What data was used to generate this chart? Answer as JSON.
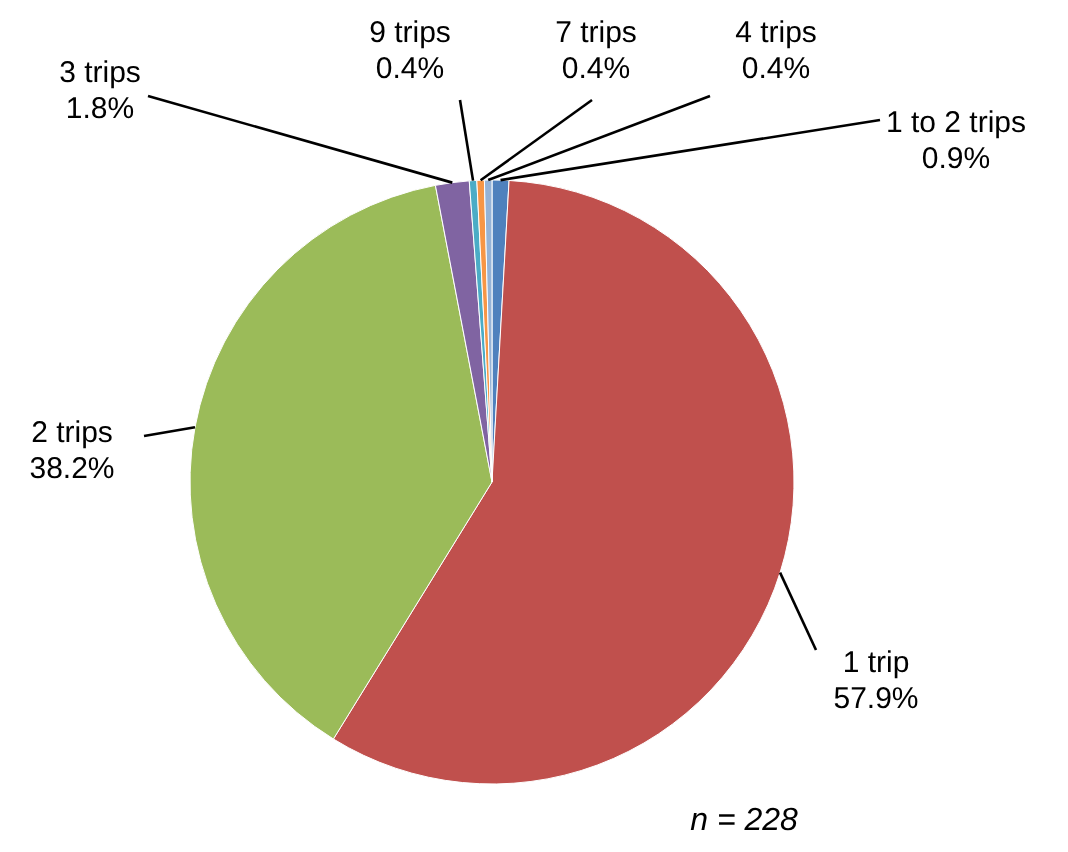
{
  "chart_data": {
    "type": "pie",
    "categories": [
      "1 to 2 trips",
      "1 trip",
      "2 trips",
      "3 trips",
      "9 trips",
      "7 trips",
      "4 trips"
    ],
    "values": [
      0.9,
      57.9,
      38.2,
      1.8,
      0.4,
      0.4,
      0.4
    ],
    "value_labels": [
      "0.9%",
      "57.9%",
      "38.2%",
      "1.8%",
      "0.4%",
      "0.4%",
      "0.4%"
    ],
    "colors": [
      "#4f81bd",
      "#c0504d",
      "#9bbb59",
      "#8064a2",
      "#4bacc6",
      "#f79646",
      "#95b3d7"
    ],
    "annotations": [
      "n = 228"
    ]
  }
}
